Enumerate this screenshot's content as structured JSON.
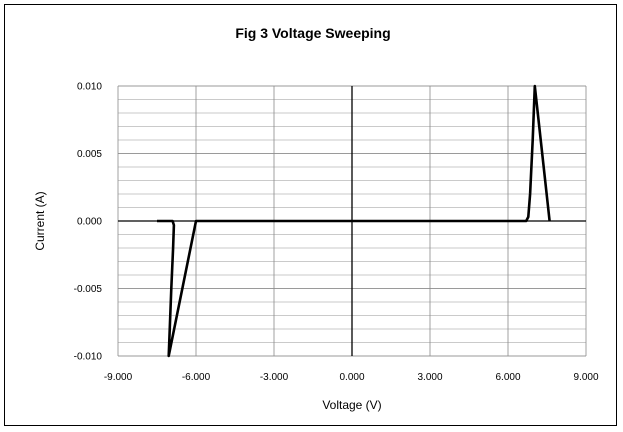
{
  "chart_data": {
    "type": "line",
    "title": "Fig 3 Voltage Sweeping",
    "xlabel": "Voltage (V)",
    "ylabel": "Current (A)",
    "xlim": [
      -9.0,
      9.0
    ],
    "ylim": [
      -0.01,
      0.01
    ],
    "x_ticks": [
      -9.0,
      -6.0,
      -3.0,
      0.0,
      3.0,
      6.0,
      9.0
    ],
    "x_tick_labels": [
      "-9.000",
      "-6.000",
      "-3.000",
      "0.000",
      "3.000",
      "6.000",
      "9.000"
    ],
    "y_ticks": [
      -0.01,
      -0.005,
      0.0,
      0.005,
      0.01
    ],
    "y_tick_labels": [
      "-0.010",
      "-0.005",
      "0.000",
      "0.005",
      "0.010"
    ],
    "grid": true,
    "legend": "none",
    "series": [
      {
        "color": "#000000",
        "x": [
          -7.5,
          -6.9,
          -6.85,
          -6.88,
          -6.95,
          -7.05,
          -6.0,
          -3.0,
          0.0,
          3.0,
          6.0,
          6.7,
          6.78,
          6.85,
          6.95,
          7.03,
          7.6
        ],
        "y": [
          0.0,
          0.0,
          -0.0003,
          -0.002,
          -0.005,
          -0.01,
          0.0,
          0.0,
          0.0,
          0.0,
          0.0,
          0.0,
          0.0003,
          0.002,
          0.006,
          0.01,
          0.0
        ]
      }
    ]
  }
}
